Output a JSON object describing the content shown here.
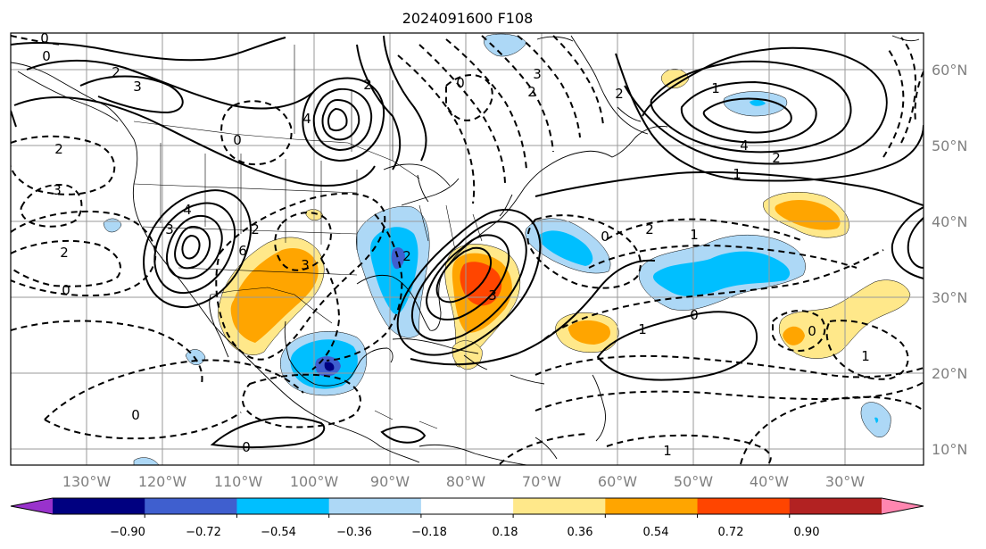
{
  "title": "2024091600 F108",
  "map": {
    "lon_ticks": [
      "130°W",
      "120°W",
      "110°W",
      "100°W",
      "90°W",
      "80°W",
      "70°W",
      "60°W",
      "50°W",
      "40°W",
      "30°W"
    ],
    "lat_ticks": [
      "60°N",
      "50°N",
      "40°N",
      "30°N",
      "20°N",
      "10°N"
    ],
    "contour_labels": [
      "0",
      "0",
      "2",
      "3",
      "2",
      "3",
      "2",
      "0",
      "3",
      "4",
      "6",
      "2",
      "3",
      "4",
      "0",
      "2",
      "0",
      "2",
      "3",
      "2",
      "3",
      "2",
      "1",
      "0",
      "1",
      "0",
      "1",
      "1",
      "0",
      "0",
      "1",
      "0",
      "4",
      "2",
      "1",
      "2"
    ]
  },
  "colorbar": {
    "ticks": [
      "−0.90",
      "−0.72",
      "−0.54",
      "−0.36",
      "−0.18",
      "0.18",
      "0.36",
      "0.54",
      "0.72",
      "0.90"
    ],
    "colors": [
      "#9932cc",
      "#000080",
      "#3f5fcf",
      "#00bfff",
      "#add8f6",
      "#ffffff",
      "#ffe88a",
      "#ffa500",
      "#ff4500",
      "#b22222",
      "#ff86b0"
    ]
  }
}
